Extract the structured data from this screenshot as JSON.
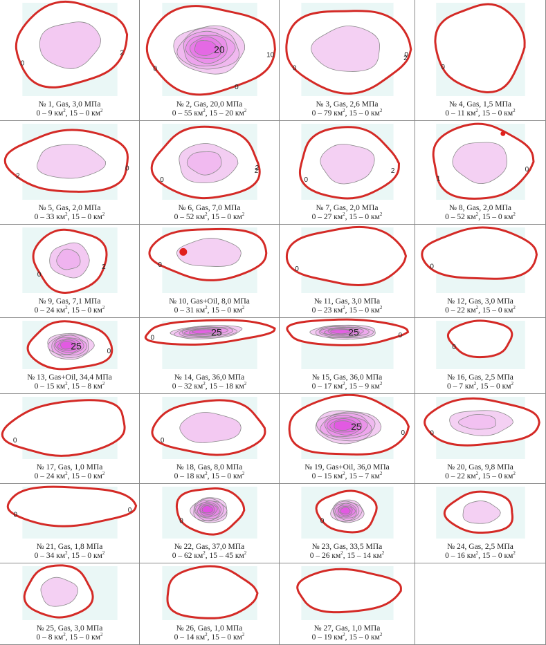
{
  "colors": {
    "zero_contour": "#d42a26",
    "inner_contour": "#8a8a8a",
    "pink_light": "#f6dff5",
    "magenta": "#e04be0",
    "bg_panel": "#eaf7f6"
  },
  "panels": [
    {
      "num": "№ 1",
      "fluid": "Gas",
      "pressure": "3,0 МПа",
      "area0": "0 – 9 км",
      "area15": "15 – 0 км",
      "labels": [
        "0",
        "2"
      ],
      "intensity": 0.15
    },
    {
      "num": "№ 2",
      "fluid": "Gas",
      "pressure": "20,0 МПа",
      "area0": "0 – 55 км",
      "area15": "15 – 20 км",
      "labels": [
        "0",
        "20",
        "10",
        "0"
      ],
      "intensity": 0.8
    },
    {
      "num": "№ 3",
      "fluid": "Gas",
      "pressure": "2,6 МПа",
      "area0": "0 – 79 км",
      "area15": "15 – 0 км",
      "labels": [
        "0",
        "2",
        "0"
      ],
      "intensity": 0.1
    },
    {
      "num": "№ 4",
      "fluid": "Gas",
      "pressure": "1,5 МПа",
      "area0": "0 – 11 км",
      "area15": "15 – 0 км",
      "labels": [
        "0"
      ],
      "intensity": 0
    },
    {
      "num": "№ 5",
      "fluid": "Gas",
      "pressure": "2,0 МПа",
      "area0": "0 – 33 км",
      "area15": "15 – 0 км",
      "labels": [
        "2",
        "0"
      ],
      "intensity": 0.1
    },
    {
      "num": "№ 6",
      "fluid": "Gas",
      "pressure": "7,0 МПа",
      "area0": "0 – 52 км",
      "area15": "15 – 0 км",
      "labels": [
        "0",
        "2",
        "2"
      ],
      "intensity": 0.25
    },
    {
      "num": "№ 7",
      "fluid": "Gas",
      "pressure": "2,0 МПа",
      "area0": "0 – 27 км",
      "area15": "15 – 0 км",
      "labels": [
        "0",
        "2"
      ],
      "intensity": 0.1
    },
    {
      "num": "№ 8",
      "fluid": "Gas",
      "pressure": "2,0 МПа",
      "area0": "0 – 52 км",
      "area15": "15 – 0 км",
      "labels": [
        "1",
        "0"
      ],
      "intensity": 0.1
    },
    {
      "num": "№ 9",
      "fluid": "Gas",
      "pressure": "7,1 МПа",
      "area0": "0 – 24 км",
      "area15": "15 – 0 км",
      "labels": [
        "0",
        "2"
      ],
      "intensity": 0.3
    },
    {
      "num": "№ 10",
      "fluid": "Gas+Oil",
      "pressure": "8,0 МПа",
      "area0": "0 – 31 км",
      "area15": "15 – 0 км",
      "labels": [
        "0"
      ],
      "intensity": 0.1
    },
    {
      "num": "№ 11",
      "fluid": "Gas",
      "pressure": "3,0 МПа",
      "area0": "0 – 23 км",
      "area15": "15 – 0 км",
      "labels": [
        "0"
      ],
      "intensity": 0
    },
    {
      "num": "№ 12",
      "fluid": "Gas",
      "pressure": "3,0 МПа",
      "area0": "0 – 22 км",
      "area15": "15 – 0 км",
      "labels": [
        "0"
      ],
      "intensity": 0
    },
    {
      "num": "№ 13",
      "fluid": "Gas+Oil",
      "pressure": "34,4 МПа",
      "area0": "0 – 15 км",
      "area15": "15 – 8 км",
      "labels": [
        "25",
        "0"
      ],
      "intensity": 0.9
    },
    {
      "num": "№ 14",
      "fluid": "Gas",
      "pressure": "36,0 МПа",
      "area0": "0 – 32 км",
      "area15": "15 – 18 км",
      "labels": [
        "0",
        "25"
      ],
      "intensity": 0.85
    },
    {
      "num": "№ 15",
      "fluid": "Gas",
      "pressure": "36,0 МПа",
      "area0": "0 – 17 км",
      "area15": "15 – 9 км",
      "labels": [
        "25",
        "0"
      ],
      "intensity": 0.85
    },
    {
      "num": "№ 16",
      "fluid": "Gas",
      "pressure": "2,5 МПа",
      "area0": "0 – 7 км",
      "area15": "15 – 0 км",
      "labels": [
        "0"
      ],
      "intensity": 0
    },
    {
      "num": "№ 17",
      "fluid": "Gas",
      "pressure": "1,0 МПа",
      "area0": "0 – 24 км",
      "area15": "15 – 0 км",
      "labels": [
        "0"
      ],
      "intensity": 0
    },
    {
      "num": "№ 18",
      "fluid": "Gas",
      "pressure": "8,0 МПа",
      "area0": "0 – 18 км",
      "area15": "15 – 0 км",
      "labels": [
        "0"
      ],
      "intensity": 0.15
    },
    {
      "num": "№ 19",
      "fluid": "Gas+Oil",
      "pressure": "36,0 МПа",
      "area0": "0 – 15 км",
      "area15": "15 – 7 км",
      "labels": [
        "25",
        "0"
      ],
      "intensity": 0.9
    },
    {
      "num": "№ 20",
      "fluid": "Gas",
      "pressure": "9,8 МПа",
      "area0": "0 – 22 км",
      "area15": "15 – 0 км",
      "labels": [
        "0"
      ],
      "intensity": 0.2
    },
    {
      "num": "№ 21",
      "fluid": "Gas",
      "pressure": "1,8 МПа",
      "area0": "0 – 34 км",
      "area15": "15 – 0 км",
      "labels": [
        "0",
        "0"
      ],
      "intensity": 0
    },
    {
      "num": "№ 22",
      "fluid": "Gas",
      "pressure": "37,0 МПа",
      "area0": "0 – 62 км",
      "area15": "15 – 45 км",
      "labels": [
        "0"
      ],
      "intensity": 0.95
    },
    {
      "num": "№ 23",
      "fluid": "Gas",
      "pressure": "33,5 МПа",
      "area0": "0 – 26 км",
      "area15": "15 – 14 км",
      "labels": [
        "0"
      ],
      "intensity": 0.9
    },
    {
      "num": "№ 24",
      "fluid": "Gas",
      "pressure": "2,5 МПа",
      "area0": "0 – 16 км",
      "area15": "15 – 0 км",
      "labels": [],
      "intensity": 0.1
    },
    {
      "num": "№ 25",
      "fluid": "Gas",
      "pressure": "3,0 МПа",
      "area0": "0 – 8 км",
      "area15": "15 – 0 км",
      "labels": [],
      "intensity": 0.1
    },
    {
      "num": "№ 26",
      "fluid": "Gas",
      "pressure": "1,0 МПа",
      "area0": "0 – 14 км",
      "area15": "15 – 0 км",
      "labels": [],
      "intensity": 0
    },
    {
      "num": "№ 27",
      "fluid": "Gas",
      "pressure": "1,0 МПа",
      "area0": "0 – 19 км",
      "area15": "15 – 0 км",
      "labels": [],
      "intensity": 0
    }
  ]
}
